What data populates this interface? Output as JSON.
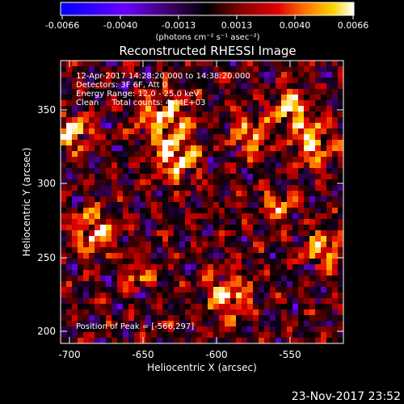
{
  "colorbar": {
    "ticks": [
      "-0.0066",
      "-0.0040",
      "-0.0013",
      "0.0013",
      "0.0040",
      "0.0066"
    ],
    "units": "(photons cm⁻² s⁻¹ asec⁻²)",
    "range": [
      -0.0066,
      0.0066
    ],
    "colormap": [
      "#0000ff",
      "#6a00ff",
      "#3a0060",
      "#000000",
      "#7a0000",
      "#e00000",
      "#ff7000",
      "#ffd000",
      "#ffffff"
    ]
  },
  "title": "Reconstructed RHESSI Image",
  "info": {
    "time_range": "12-Apr-2017 14:28:20.000 to 14:38:20.000",
    "detectors": "Detectors: 3F 6F, Att 0",
    "energy_range": "Energy Range: 12.0 - 25.0 keV",
    "method_counts": "Clean     Total counts: 4.44E+03",
    "peak": "Position of Peak = [-566,297]"
  },
  "axes": {
    "xlabel": "Heliocentric X (arcsec)",
    "ylabel": "Heliocentric Y (arcsec)",
    "xticks": [
      "-700",
      "-650",
      "-600",
      "-550"
    ],
    "yticks": [
      "200",
      "250",
      "300",
      "350"
    ],
    "xlim": [
      -711,
      -519
    ],
    "ylim": [
      193,
      385
    ]
  },
  "footer": {
    "timestamp": "23-Nov-2017 23:52"
  }
}
